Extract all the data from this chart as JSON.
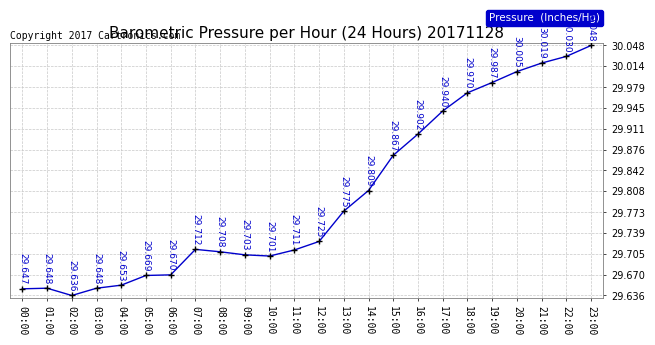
{
  "title": "Barometric Pressure per Hour (24 Hours) 20171128",
  "copyright": "Copyright 2017 Cartronics.com",
  "legend_label": "Pressure  (Inches/Hg)",
  "hours": [
    0,
    1,
    2,
    3,
    4,
    5,
    6,
    7,
    8,
    9,
    10,
    11,
    12,
    13,
    14,
    15,
    16,
    17,
    18,
    19,
    20,
    21,
    22,
    23
  ],
  "x_labels": [
    "00:00",
    "01:00",
    "02:00",
    "03:00",
    "04:00",
    "05:00",
    "06:00",
    "07:00",
    "08:00",
    "09:00",
    "10:00",
    "11:00",
    "12:00",
    "13:00",
    "14:00",
    "15:00",
    "16:00",
    "17:00",
    "18:00",
    "19:00",
    "20:00",
    "21:00",
    "22:00",
    "23:00"
  ],
  "values": [
    29.647,
    29.648,
    29.636,
    29.648,
    29.653,
    29.669,
    29.67,
    29.712,
    29.708,
    29.703,
    29.701,
    29.711,
    29.725,
    29.775,
    29.809,
    29.867,
    29.902,
    29.94,
    29.97,
    29.987,
    30.005,
    30.019,
    30.03,
    30.048
  ],
  "line_color": "#0000cc",
  "marker_color": "#000000",
  "label_color": "#0000cc",
  "background_color": "#ffffff",
  "grid_color": "#c8c8c8",
  "title_color": "#000000",
  "copyright_color": "#000000",
  "ylim_min": 29.636,
  "ylim_max": 30.048,
  "yticks": [
    29.636,
    29.67,
    29.705,
    29.739,
    29.773,
    29.808,
    29.842,
    29.876,
    29.911,
    29.945,
    29.979,
    30.014,
    30.048
  ],
  "legend_bg": "#0000cc",
  "legend_fg": "#ffffff",
  "title_fontsize": 11,
  "axis_fontsize": 7,
  "label_fontsize": 6.5,
  "copyright_fontsize": 7
}
